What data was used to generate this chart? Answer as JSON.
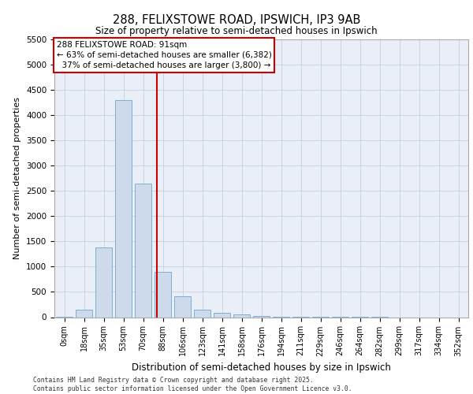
{
  "title_line1": "288, FELIXSTOWE ROAD, IPSWICH, IP3 9AB",
  "title_line2": "Size of property relative to semi-detached houses in Ipswich",
  "xlabel": "Distribution of semi-detached houses by size in Ipswich",
  "ylabel": "Number of semi-detached properties",
  "property_size": 91,
  "property_label": "288 FELIXSTOWE ROAD: 91sqm",
  "pct_smaller": 63,
  "pct_larger": 37,
  "count_smaller": 6382,
  "count_larger": 3800,
  "categories": [
    "0sqm",
    "18sqm",
    "35sqm",
    "53sqm",
    "70sqm",
    "88sqm",
    "106sqm",
    "123sqm",
    "141sqm",
    "158sqm",
    "176sqm",
    "194sqm",
    "211sqm",
    "229sqm",
    "246sqm",
    "264sqm",
    "282sqm",
    "299sqm",
    "317sqm",
    "334sqm",
    "352sqm"
  ],
  "values": [
    5,
    155,
    1380,
    4300,
    2650,
    900,
    420,
    155,
    90,
    55,
    25,
    10,
    5,
    3,
    2,
    1,
    1,
    0,
    0,
    0,
    0
  ],
  "bar_color": "#ccdaeb",
  "bar_edge_color": "#7bafd4",
  "vline_color": "#cc0000",
  "grid_color": "#c8d4e4",
  "bg_color": "#eaeff7",
  "footer_text": "Contains HM Land Registry data © Crown copyright and database right 2025.\nContains public sector information licensed under the Open Government Licence v3.0.",
  "ylim": [
    0,
    5500
  ],
  "yticks": [
    0,
    500,
    1000,
    1500,
    2000,
    2500,
    3000,
    3500,
    4000,
    4500,
    5000,
    5500
  ]
}
